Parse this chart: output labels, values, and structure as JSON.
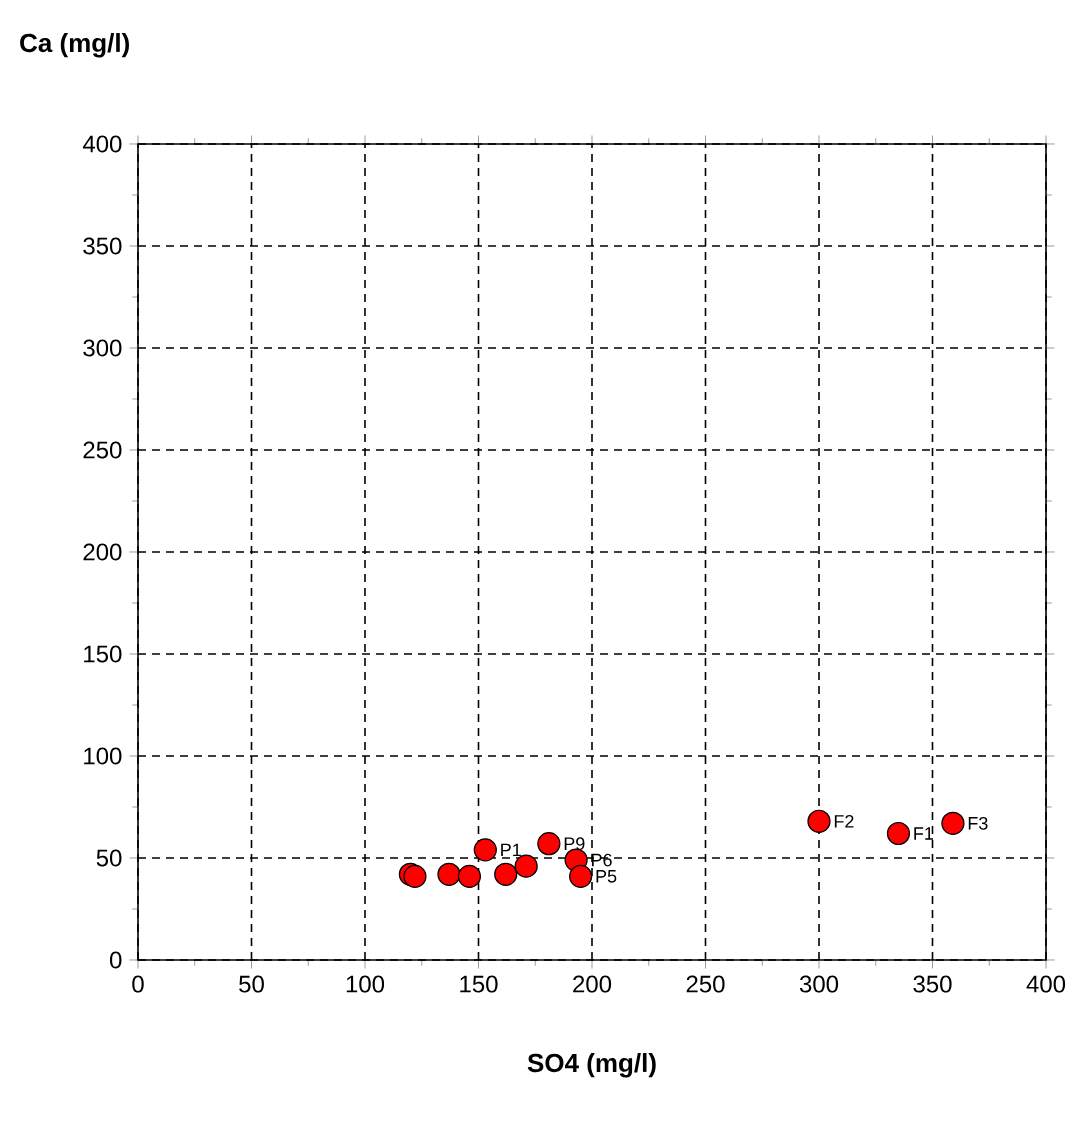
{
  "chart_data": {
    "type": "scatter",
    "xlabel": "SO4 (mg/l)",
    "ylabel": "Ca (mg/l)",
    "series": [
      {
        "color": "#ff0000",
        "x": [
          120,
          122,
          137,
          146,
          153,
          162,
          171,
          181,
          193,
          195,
          300,
          335,
          359
        ],
        "values": [
          42,
          41,
          42,
          41,
          54,
          42,
          46,
          57,
          49,
          41,
          68,
          62,
          67
        ]
      }
    ],
    "annotations": [
      {
        "text": "P1",
        "x": 153,
        "y": 54
      },
      {
        "text": "P9",
        "x": 181,
        "y": 57
      },
      {
        "text": "P6",
        "x": 193,
        "y": 49
      },
      {
        "text": "P5",
        "x": 195,
        "y": 41
      },
      {
        "text": "F2",
        "x": 300,
        "y": 68
      },
      {
        "text": "F1",
        "x": 335,
        "y": 62
      },
      {
        "text": "F3",
        "x": 359,
        "y": 67
      }
    ],
    "xlim": [
      0,
      400
    ],
    "ylim": [
      0,
      400
    ],
    "xticks": [
      0,
      50,
      100,
      150,
      200,
      250,
      300,
      350,
      400
    ],
    "yticks": [
      0,
      50,
      100,
      150,
      200,
      250,
      300,
      350,
      400
    ],
    "grid": true,
    "marker": "circle"
  }
}
